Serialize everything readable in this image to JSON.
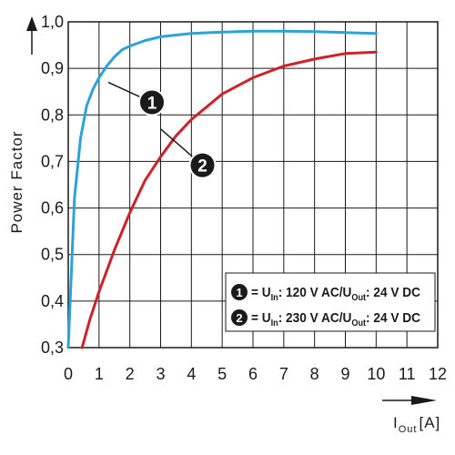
{
  "chart_data": {
    "type": "line",
    "ylabel": "Power Factor",
    "xlabel_main": "I",
    "xlabel_sub": "Out",
    "xlabel_unit": "[A]",
    "xlim": [
      0,
      12
    ],
    "ylim": [
      0.3,
      1.0
    ],
    "x_ticks": [
      "0",
      "1",
      "2",
      "3",
      "4",
      "5",
      "6",
      "7",
      "8",
      "9",
      "10",
      "11",
      "12"
    ],
    "y_ticks": [
      "0,3",
      "0,4",
      "0,5",
      "0,6",
      "0,7",
      "0,8",
      "0,9",
      "1,0"
    ],
    "grid": true,
    "series": [
      {
        "name": "1",
        "color": "#2ba3d9",
        "x": [
          0,
          0.2,
          0.4,
          0.6,
          0.8,
          1.0,
          1.25,
          1.5,
          1.75,
          2.0,
          2.5,
          3,
          4,
          5,
          6,
          7,
          8,
          9,
          10
        ],
        "y": [
          0.3,
          0.62,
          0.75,
          0.82,
          0.855,
          0.88,
          0.905,
          0.925,
          0.94,
          0.948,
          0.96,
          0.968,
          0.975,
          0.978,
          0.98,
          0.98,
          0.979,
          0.977,
          0.975
        ]
      },
      {
        "name": "2",
        "color": "#cc2229",
        "x": [
          0.45,
          0.7,
          1.0,
          1.5,
          2.0,
          2.5,
          3.0,
          3.5,
          4,
          5,
          6,
          7,
          8,
          9,
          10
        ],
        "y": [
          0.3,
          0.36,
          0.42,
          0.51,
          0.59,
          0.66,
          0.71,
          0.755,
          0.79,
          0.845,
          0.88,
          0.905,
          0.92,
          0.932,
          0.935
        ]
      }
    ],
    "annotations": [
      {
        "label": "1",
        "at_x": 1.3,
        "at_y": 0.87
      },
      {
        "label": "2",
        "at_x": 3.0,
        "at_y": 0.77
      }
    ],
    "legend": {
      "placement": "bottom-right",
      "entries": [
        {
          "num": "1",
          "u": "U",
          "in": "In",
          "mid": ": 120 V AC/U",
          "out": "Out",
          "tail": ": 24 V DC"
        },
        {
          "num": "2",
          "u": "U",
          "in": "In",
          "mid": ": 230 V AC/U",
          "out": "Out",
          "tail": ": 24 V DC"
        }
      ]
    }
  }
}
